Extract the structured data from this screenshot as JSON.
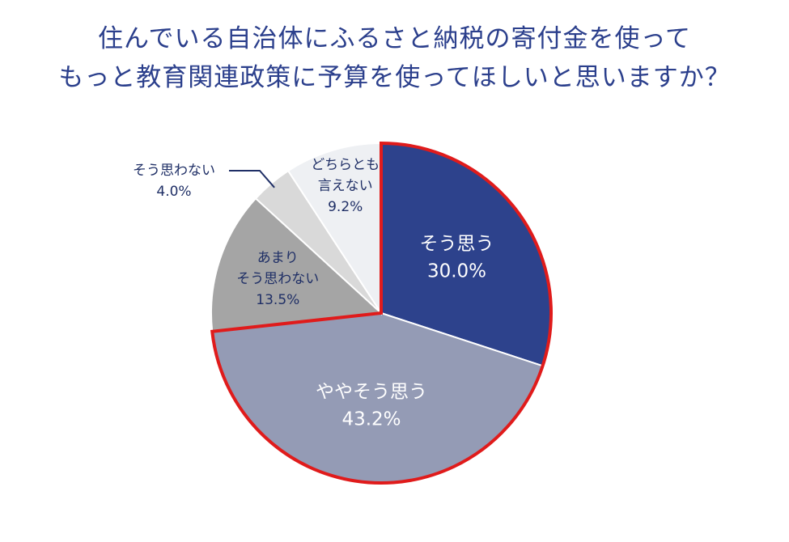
{
  "chart_data": {
    "type": "pie",
    "title_lines": [
      "住んでいる自治体にふるさと納税の寄付金を使って",
      "もっと教育関連政策に予算を使ってほしいと思いますか？"
    ],
    "slices": [
      {
        "label_lines": [
          "そう思う"
        ],
        "value": 30.0,
        "value_label": "30.0%",
        "color": "#2d428c",
        "text_color": "#ffffff",
        "highlight": true
      },
      {
        "label_lines": [
          "ややそう思う"
        ],
        "value": 43.2,
        "value_label": "43.2%",
        "color": "#949bb5",
        "text_color": "#ffffff",
        "highlight": true
      },
      {
        "label_lines": [
          "あまり",
          "そう思わない"
        ],
        "value": 13.5,
        "value_label": "13.5%",
        "color": "#a5a5a5",
        "text_color": "#1f2f66"
      },
      {
        "label_lines": [
          "そう思わない"
        ],
        "value": 4.0,
        "value_label": "4.0%",
        "color": "#d9d9d9",
        "text_color": "#1f2f66",
        "outside": true
      },
      {
        "label_lines": [
          "どちらとも",
          "言えない"
        ],
        "value": 9.2,
        "value_label": "9.2%",
        "color": "#eef0f3",
        "text_color": "#1f2f66"
      }
    ],
    "start": "12 o'clock",
    "direction": "clockwise",
    "highlight_color": "#e01b1b",
    "title_color": "#2b3f8c"
  }
}
